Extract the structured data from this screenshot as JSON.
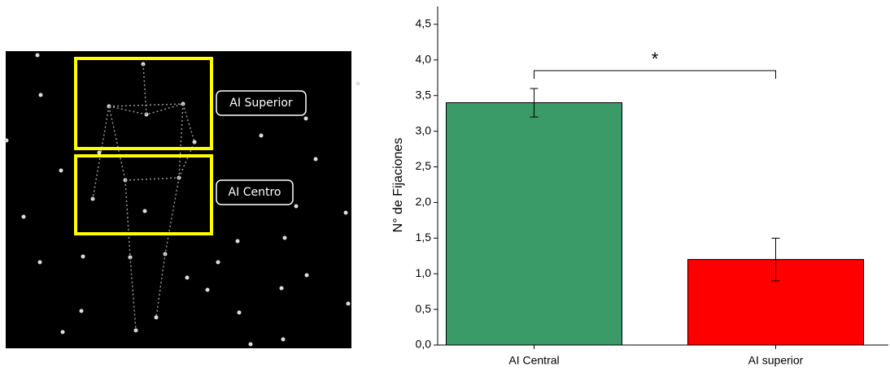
{
  "stimulus": {
    "labels": [
      "AI Superior",
      "AI Centro"
    ]
  },
  "chart_data": {
    "type": "bar",
    "ylabel": "N° de Fijaciones",
    "categories": [
      "AI Central",
      "AI superior"
    ],
    "values": [
      3.4,
      1.2
    ],
    "errors": [
      0.2,
      0.3
    ],
    "colors": [
      "#3a9a68",
      "#ff0000"
    ],
    "annotation": "*",
    "ylim": [
      0,
      4.75
    ],
    "yticks": [
      {
        "value": 0,
        "label": "0,0"
      },
      {
        "value": 0.5,
        "label": "0,5"
      },
      {
        "value": 1,
        "label": "1,0"
      },
      {
        "value": 1.5,
        "label": "1,5"
      },
      {
        "value": 2,
        "label": "2,0"
      },
      {
        "value": 2.5,
        "label": "2,5"
      },
      {
        "value": 3,
        "label": "3,0"
      },
      {
        "value": 3.5,
        "label": "3,5"
      },
      {
        "value": 4,
        "label": "4,0"
      },
      {
        "value": 4.5,
        "label": "4,5"
      }
    ]
  }
}
